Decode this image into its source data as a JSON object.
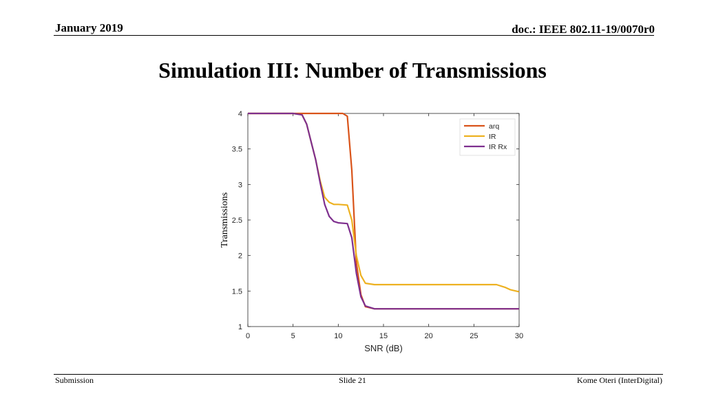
{
  "header": {
    "date": "January 2019",
    "doc": "doc.: IEEE 802.11-19/0070r0"
  },
  "slide": {
    "title": "Simulation III: Number of Transmissions"
  },
  "footer": {
    "left": "Submission",
    "center": "Slide 21",
    "right": "Kome Oteri (InterDigital)"
  },
  "chart_data": {
    "type": "line",
    "title": "",
    "xlabel": "SNR (dB)",
    "ylabel": "Transmissions",
    "xlim": [
      0,
      30
    ],
    "ylim": [
      1,
      4
    ],
    "xticks": [
      0,
      5,
      10,
      15,
      20,
      25,
      30
    ],
    "yticks": [
      1,
      1.5,
      2,
      2.5,
      3,
      3.5,
      4
    ],
    "grid": false,
    "legend_position": "top-right",
    "series": [
      {
        "name": "arq",
        "color": "#d95319",
        "x": [
          0,
          5,
          10,
          10.5,
          11,
          11.5,
          12,
          12.5,
          13,
          14,
          15,
          20,
          25,
          30
        ],
        "y": [
          4,
          4,
          4,
          4,
          3.96,
          3.2,
          1.9,
          1.45,
          1.28,
          1.25,
          1.25,
          1.25,
          1.25,
          1.25
        ]
      },
      {
        "name": "IR",
        "color": "#edb120",
        "x": [
          0,
          5,
          6,
          6.5,
          7,
          7.5,
          8,
          8.5,
          9,
          9.5,
          10,
          11,
          11.5,
          12,
          12.5,
          13,
          14,
          15,
          20,
          25,
          27.5,
          28.5,
          29,
          30
        ],
        "y": [
          4,
          4,
          3.98,
          3.85,
          3.6,
          3.35,
          3.05,
          2.82,
          2.75,
          2.72,
          2.72,
          2.71,
          2.5,
          2.0,
          1.72,
          1.61,
          1.59,
          1.59,
          1.59,
          1.59,
          1.59,
          1.55,
          1.52,
          1.49
        ]
      },
      {
        "name": "IR Rx",
        "color": "#7e2f8e",
        "x": [
          0,
          5,
          6,
          6.5,
          7,
          7.5,
          8,
          8.5,
          9,
          9.5,
          10,
          11,
          11.5,
          12,
          12.5,
          13,
          14,
          15,
          20,
          25,
          30
        ],
        "y": [
          4,
          4,
          3.98,
          3.85,
          3.6,
          3.35,
          3.02,
          2.72,
          2.55,
          2.48,
          2.46,
          2.45,
          2.25,
          1.75,
          1.42,
          1.29,
          1.25,
          1.25,
          1.25,
          1.25,
          1.25
        ]
      }
    ]
  }
}
